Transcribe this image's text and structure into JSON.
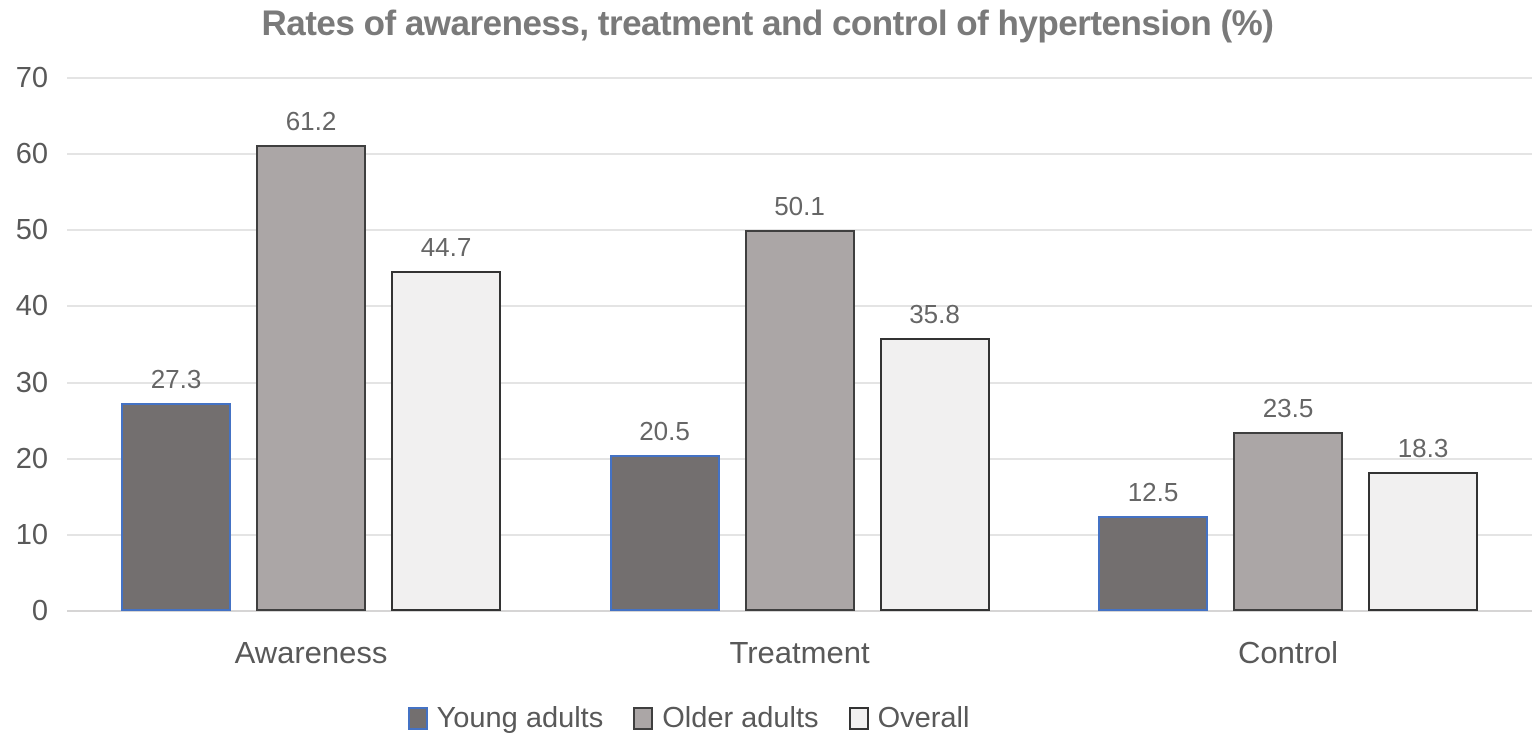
{
  "chart_data": {
    "type": "bar",
    "title": "Rates of awareness, treatment and control of hypertension (%)",
    "categories": [
      "Awareness",
      "Treatment",
      "Control"
    ],
    "series": [
      {
        "name": "Young adults",
        "values": [
          27.3,
          20.5,
          12.5
        ],
        "fill": "#736F6F",
        "border": "#4472C4"
      },
      {
        "name": "Older adults",
        "values": [
          61.2,
          50.1,
          23.5
        ],
        "fill": "#ABA6A6",
        "border": "#3F3F3F"
      },
      {
        "name": "Overall",
        "values": [
          44.7,
          35.8,
          18.3
        ],
        "fill": "#F1F0F0",
        "border": "#333333"
      }
    ],
    "xlabel": "",
    "ylabel": "",
    "ylim": [
      0,
      70
    ],
    "yticks": [
      0,
      10,
      20,
      30,
      40,
      50,
      60,
      70
    ],
    "grid": true,
    "legend_position": "bottom",
    "styles": {
      "title_color": "#7A7A7A",
      "axis_text_color": "#595959",
      "value_label_color": "#666666",
      "grid_color": "#E4E4E4",
      "baseline_color": "#D6D5D5",
      "background": "#FFFFFF"
    }
  }
}
